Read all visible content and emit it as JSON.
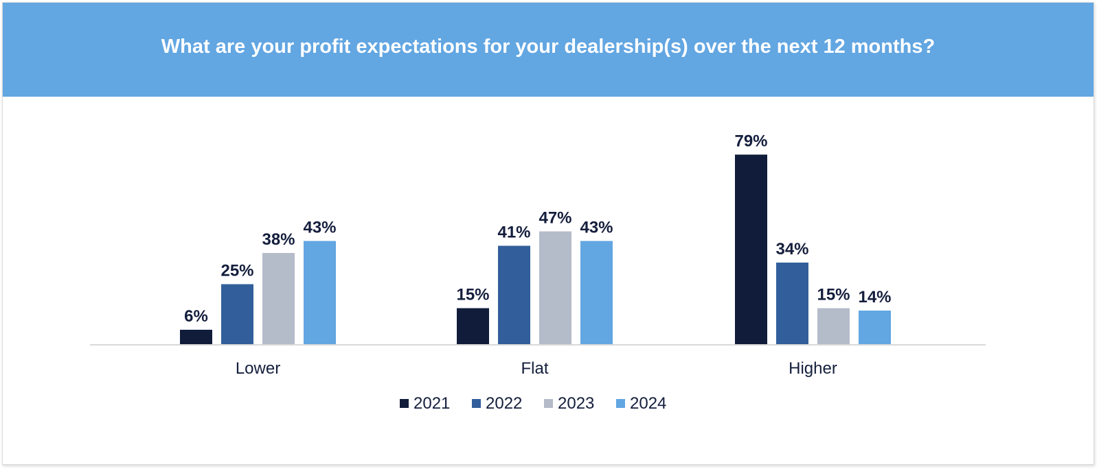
{
  "chart_data": {
    "type": "bar",
    "title": "What are your profit expectations for your dealership(s) over the next 12 months?",
    "categories": [
      "Lower",
      "Flat",
      "Higher"
    ],
    "series": [
      {
        "name": "2021",
        "color": "#101c3a",
        "values": [
          6,
          15,
          79
        ]
      },
      {
        "name": "2022",
        "color": "#325f9b",
        "values": [
          25,
          41,
          34
        ]
      },
      {
        "name": "2023",
        "color": "#b4bbc9",
        "values": [
          38,
          47,
          15
        ]
      },
      {
        "name": "2024",
        "color": "#62a6e2",
        "values": [
          43,
          43,
          14
        ]
      }
    ],
    "value_suffix": "%",
    "xlabel": "",
    "ylabel": "",
    "ylim": [
      0,
      100
    ],
    "legend_position": "bottom",
    "grid": false
  },
  "colors": {
    "header_background": "#62a6e2",
    "text": "#141e3c",
    "axis_line": "#d9d9d9"
  }
}
